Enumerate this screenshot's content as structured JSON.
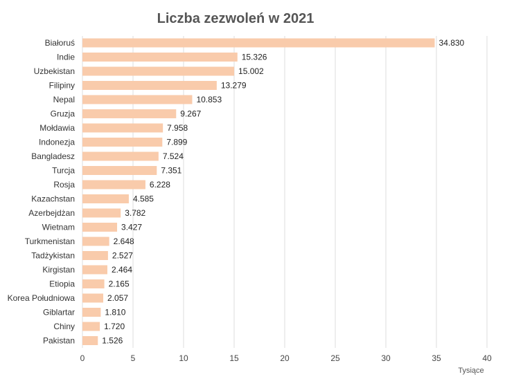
{
  "chart_data": {
    "type": "bar",
    "orientation": "horizontal",
    "title": "Liczba zezwoleń w 2021",
    "xlabel": "",
    "ylabel": "",
    "x_unit_label": "Tysiące",
    "xlim": [
      0,
      40
    ],
    "x_ticks": [
      0,
      5,
      10,
      15,
      20,
      25,
      30,
      35,
      40
    ],
    "grid": true,
    "legend": "none",
    "bar_color": "#f9cbab",
    "categories": [
      "Białoruś",
      "Indie",
      "Uzbekistan",
      "Filipiny",
      "Nepal",
      "Gruzja",
      "Mołdawia",
      "Indonezja",
      "Bangladesz",
      "Turcja",
      "Rosja",
      "Kazachstan",
      "Azerbejdżan",
      "Wietnam",
      "Turkmenistan",
      "Tadżykistan",
      "Kirgistan",
      "Etiopia",
      "Korea Południowa",
      "Giblartar",
      "Chiny",
      "Pakistan"
    ],
    "values": [
      34.83,
      15.326,
      15.002,
      13.279,
      10.853,
      9.267,
      7.958,
      7.899,
      7.524,
      7.351,
      6.228,
      4.585,
      3.782,
      3.427,
      2.648,
      2.527,
      2.464,
      2.165,
      2.057,
      1.81,
      1.72,
      1.526
    ],
    "value_labels": [
      "34.830",
      "15.326",
      "15.002",
      "13.279",
      "10.853",
      "9.267",
      "7.958",
      "7.899",
      "7.524",
      "7.351",
      "6.228",
      "4.585",
      "3.782",
      "3.427",
      "2.648",
      "2.527",
      "2.464",
      "2.165",
      "2.057",
      "1.810",
      "1.720",
      "1.526"
    ]
  }
}
